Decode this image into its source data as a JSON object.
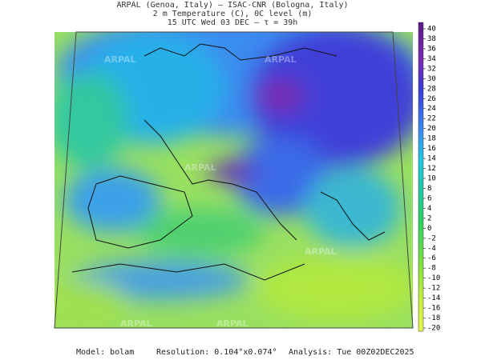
{
  "header": {
    "line1": "ARPAL (Genoa, Italy)  —  ISAC-CNR (Bologna, Italy)",
    "line2": "2 m Temperature (C), 0C level (m)",
    "line3": "15 UTC Wed 03 DEC  —  τ = 39h"
  },
  "colorbar": {
    "ticks": [
      40,
      38,
      36,
      34,
      32,
      30,
      28,
      26,
      24,
      22,
      20,
      18,
      16,
      14,
      12,
      10,
      8,
      6,
      4,
      2,
      0,
      -2,
      -4,
      -6,
      -8,
      -10,
      -12,
      -14,
      -16,
      -18,
      -20
    ]
  },
  "watermark": "ARPAL",
  "footer": {
    "model": "Model: bolam",
    "resolution": "Resolution: 0.104°x0.074°",
    "analysis": "Analysis: Tue 00Z02DEC2025"
  }
}
